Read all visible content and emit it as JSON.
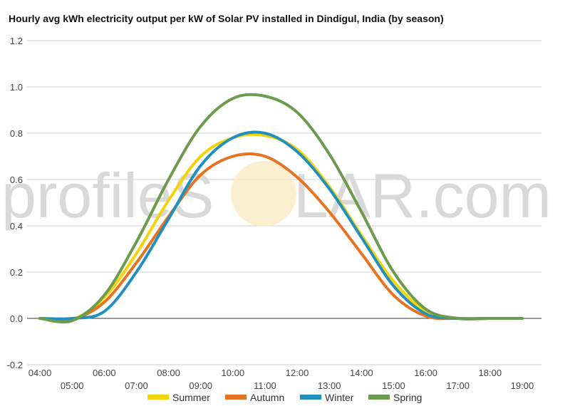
{
  "chart_data": {
    "type": "line",
    "title": "Hourly avg kWh electricity output per kW of Solar PV installed in Dindigul, India (by season)",
    "watermark": {
      "left": "profileS",
      "right": "LAR.com"
    },
    "xlabel": "",
    "ylabel": "",
    "x_tick_labels": [
      "04:00",
      "05:00",
      "06:00",
      "07:00",
      "08:00",
      "09:00",
      "10:00",
      "11:00",
      "12:00",
      "13:00",
      "14:00",
      "15:00",
      "16:00",
      "17:00",
      "18:00",
      "19:00"
    ],
    "x": [
      4,
      5,
      6,
      7,
      8,
      9,
      10,
      11,
      12,
      13,
      14,
      15,
      16,
      17,
      18,
      19
    ],
    "ylim": [
      -0.2,
      1.2
    ],
    "y_ticks": [
      -0.2,
      0.0,
      0.2,
      0.4,
      0.6,
      0.8,
      1.0,
      1.2
    ],
    "legend_position": "bottom",
    "grid": true,
    "series": [
      {
        "name": "Summer",
        "color": "#f5d30b",
        "values": [
          0.0,
          -0.005,
          0.09,
          0.28,
          0.51,
          0.7,
          0.78,
          0.79,
          0.73,
          0.57,
          0.36,
          0.16,
          0.03,
          0.0,
          0.0,
          0.0
        ]
      },
      {
        "name": "Autumn",
        "color": "#e8731f",
        "values": [
          0.0,
          -0.005,
          0.07,
          0.24,
          0.44,
          0.62,
          0.7,
          0.7,
          0.61,
          0.46,
          0.28,
          0.1,
          0.01,
          0.0,
          0.0,
          0.0
        ]
      },
      {
        "name": "Winter",
        "color": "#2290bf",
        "values": [
          0.0,
          0.0,
          0.03,
          0.2,
          0.43,
          0.66,
          0.78,
          0.8,
          0.72,
          0.56,
          0.35,
          0.14,
          0.02,
          0.0,
          0.0,
          0.0
        ]
      },
      {
        "name": "Spring",
        "color": "#6b9b4c",
        "values": [
          0.0,
          -0.01,
          0.1,
          0.33,
          0.6,
          0.83,
          0.95,
          0.96,
          0.89,
          0.71,
          0.46,
          0.2,
          0.04,
          0.0,
          0.0,
          0.0
        ]
      }
    ]
  }
}
